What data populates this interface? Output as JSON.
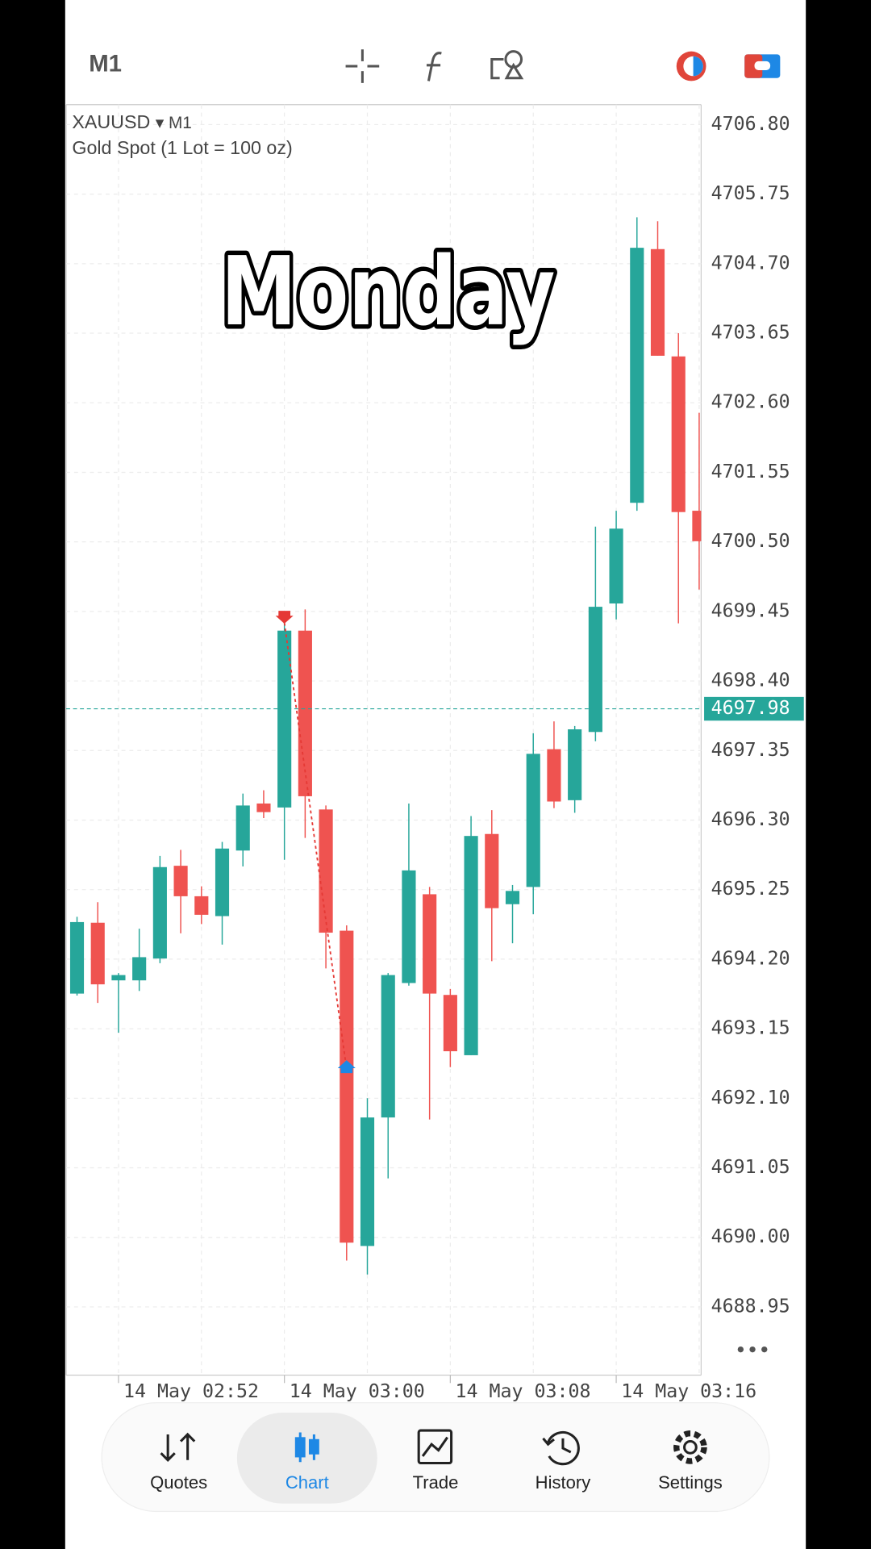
{
  "ui": {
    "timeframe": "M1",
    "nav": [
      "Quotes",
      "Chart",
      "Trade",
      "History",
      "Settings"
    ]
  },
  "chart_data": {
    "type": "candlestick",
    "title": "XAUUSD",
    "title_suffix": "▾ M1",
    "subtitle": "Gold Spot (1 Lot = 100 oz)",
    "annotation": "Monday",
    "categories": [
      null,
      null,
      "14 May 02:52",
      null,
      null,
      null,
      null,
      null,
      null,
      null,
      "14 May 03:00",
      null,
      null,
      null,
      null,
      null,
      null,
      null,
      "14 May 03:08",
      null,
      null,
      null,
      null,
      null,
      null,
      null,
      "14 May 03:16",
      null,
      null,
      null,
      null
    ],
    "open": [
      4693.68,
      4694.75,
      4693.88,
      4693.88,
      4694.21,
      4695.61,
      4695.15,
      4694.85,
      4695.84,
      4696.55,
      4696.49,
      4699.16,
      4696.46,
      4694.63,
      4689.87,
      4691.81,
      4693.84,
      4695.18,
      4693.66,
      4692.75,
      4696.09,
      4695.03,
      4695.29,
      4697.37,
      4696.6,
      4697.63,
      4699.57,
      4701.09,
      4704.92,
      4703.3,
      4700.97
    ],
    "high": [
      4694.84,
      4695.06,
      4693.99,
      4694.66,
      4695.76,
      4695.85,
      4695.3,
      4695.97,
      4696.7,
      4696.75,
      4699.28,
      4699.48,
      4696.52,
      4694.71,
      4692.1,
      4693.99,
      4696.55,
      4695.29,
      4693.75,
      4696.36,
      4696.45,
      4695.32,
      4697.61,
      4697.79,
      4697.72,
      4700.73,
      4700.97,
      4705.4,
      4705.34,
      4703.65,
      4702.45
    ],
    "low": [
      4693.65,
      4693.54,
      4693.09,
      4693.72,
      4694.14,
      4694.59,
      4694.73,
      4694.42,
      4695.6,
      4696.33,
      4695.7,
      4696.03,
      4694.06,
      4689.65,
      4689.44,
      4690.89,
      4693.8,
      4691.78,
      4692.57,
      4692.75,
      4694.17,
      4694.44,
      4694.88,
      4696.48,
      4696.41,
      4697.49,
      4699.33,
      4700.97,
      4703.31,
      4699.27,
      4699.78
    ],
    "close": [
      4694.76,
      4693.82,
      4693.96,
      4694.23,
      4695.59,
      4695.15,
      4694.87,
      4695.87,
      4696.52,
      4696.42,
      4699.16,
      4696.66,
      4694.6,
      4689.92,
      4691.81,
      4693.96,
      4695.54,
      4693.68,
      4692.81,
      4696.06,
      4694.97,
      4695.23,
      4697.3,
      4696.58,
      4697.67,
      4699.52,
      4700.7,
      4704.94,
      4703.31,
      4700.95,
      4700.51
    ],
    "up_color": "#26a69a",
    "down_color": "#ef5350",
    "current_price": 4697.98,
    "trade": {
      "sell_price": 4699.28,
      "buy_price": 4692.54
    },
    "ylim": [
      4687.92,
      4707.1
    ],
    "yticks": [
      4688.95,
      {
        "value": 4690,
        "label": "4690.00"
      },
      4691.05,
      {
        "value": 4692.1,
        "label": "4692.10"
      },
      4693.15,
      {
        "value": 4694.2,
        "label": "4694.20"
      },
      4695.25,
      {
        "value": 4696.3,
        "label": "4696.30"
      },
      4697.35,
      {
        "value": 4698.4,
        "label": "4698.40"
      },
      4699.45,
      {
        "value": 4700.5,
        "label": "4700.50"
      },
      4701.55,
      {
        "value": 4702.6,
        "label": "4702.60"
      },
      4703.65,
      {
        "value": 4704.7,
        "label": "4704.70"
      },
      4705.75,
      {
        "value": 4706.8,
        "label": "4706.80"
      }
    ],
    "grid": true
  }
}
